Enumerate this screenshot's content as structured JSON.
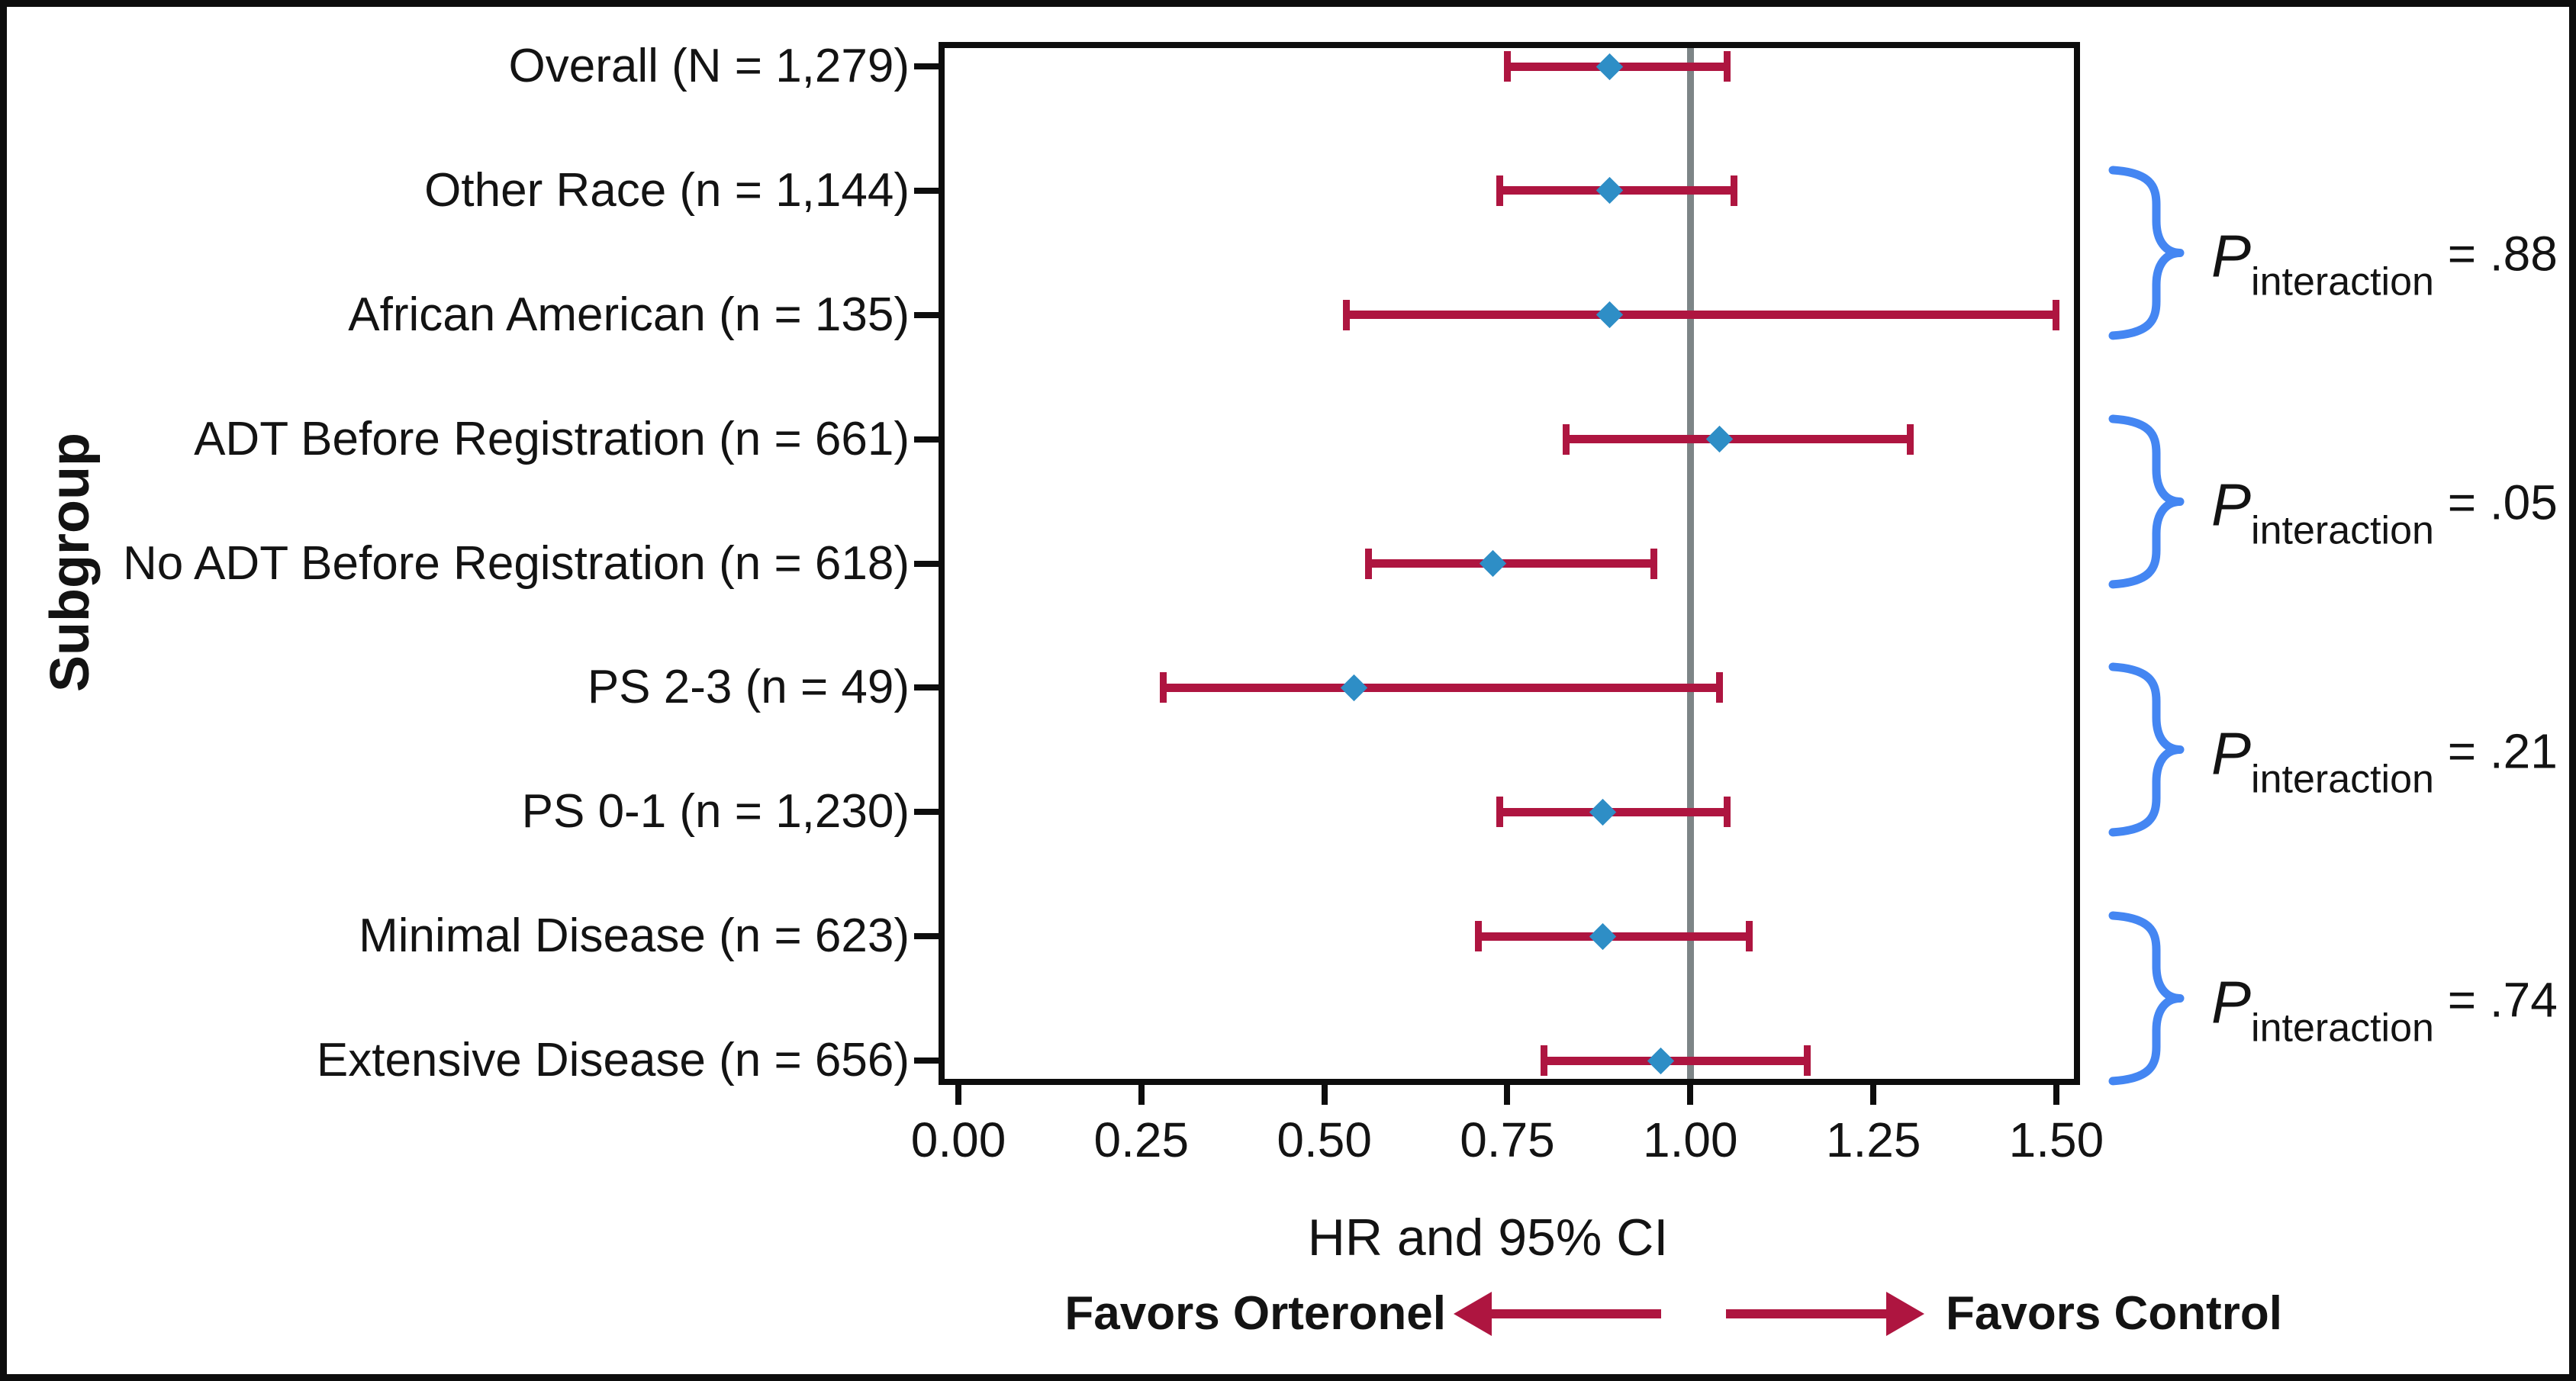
{
  "figure": {
    "y_axis_title": "Subgroup",
    "x_axis_title": "HR and 95% CI",
    "legend": {
      "left_label": "Favors Orteronel",
      "right_label": "Favors Control"
    },
    "colors": {
      "ci_bar": "#ae1540",
      "marker": "#2e8ec6",
      "brace": "#4486f2",
      "reference_line": "#7d8587",
      "text": "#131313",
      "frame": "#0d0d0d"
    }
  },
  "chart_data": {
    "type": "forest",
    "title": "",
    "xlabel": "HR and 95% CI",
    "ylabel": "Subgroup",
    "x_axis": {
      "range": [
        0.0,
        1.5
      ],
      "reference_value": 1.0,
      "ticks": [
        {
          "v": 0.0,
          "label": "0.00"
        },
        {
          "v": 0.25,
          "label": "0.25"
        },
        {
          "v": 0.5,
          "label": "0.50"
        },
        {
          "v": 0.75,
          "label": "0.75"
        },
        {
          "v": 1.0,
          "label": "1.00"
        },
        {
          "v": 1.25,
          "label": "1.25"
        },
        {
          "v": 1.5,
          "label": "1.50"
        }
      ]
    },
    "rows": [
      {
        "label": "Overall (N = 1,279)",
        "hr": 0.89,
        "lo": 0.75,
        "hi": 1.05
      },
      {
        "label": "Other Race (n = 1,144)",
        "hr": 0.89,
        "lo": 0.74,
        "hi": 1.06
      },
      {
        "label": "African American (n = 135)",
        "hr": 0.89,
        "lo": 0.53,
        "hi": 1.5
      },
      {
        "label": "ADT Before Registration (n = 661)",
        "hr": 1.04,
        "lo": 0.83,
        "hi": 1.3
      },
      {
        "label": "No ADT Before Registration (n = 618)",
        "hr": 0.73,
        "lo": 0.56,
        "hi": 0.95
      },
      {
        "label": "PS 2-3 (n = 49)",
        "hr": 0.54,
        "lo": 0.28,
        "hi": 1.04
      },
      {
        "label": "PS 0-1 (n = 1,230)",
        "hr": 0.88,
        "lo": 0.74,
        "hi": 1.05
      },
      {
        "label": "Minimal Disease (n = 623)",
        "hr": 0.88,
        "lo": 0.71,
        "hi": 1.08
      },
      {
        "label": "Extensive Disease (n = 656)",
        "hr": 0.96,
        "lo": 0.8,
        "hi": 1.16
      }
    ],
    "interaction_groups": [
      {
        "rows": [
          1,
          2
        ],
        "p_prefix": "P",
        "p_subscript": "interaction",
        "p_value": " = .88"
      },
      {
        "rows": [
          3,
          4
        ],
        "p_prefix": "P",
        "p_subscript": "interaction",
        "p_value": " = .05"
      },
      {
        "rows": [
          5,
          6
        ],
        "p_prefix": "P",
        "p_subscript": "interaction",
        "p_value": " = .21"
      },
      {
        "rows": [
          7,
          8
        ],
        "p_prefix": "P",
        "p_subscript": "interaction",
        "p_value": " = .74"
      }
    ],
    "legend_annotations": [
      "Favors Orteronel",
      "Favors Control"
    ],
    "layout_hints": {
      "grid": false,
      "marker_shape": "diamond",
      "ci_style": "capped-bar"
    }
  }
}
